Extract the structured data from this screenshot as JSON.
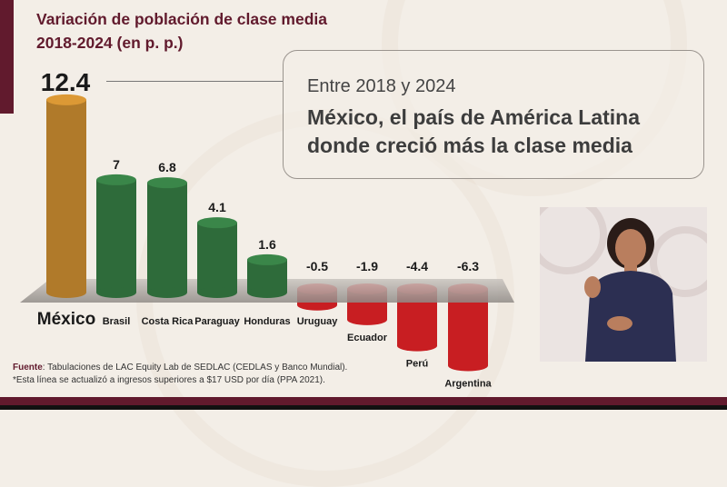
{
  "title_line1": "Variación de población de clase media",
  "title_line2": "2018-2024 (en p. p.)",
  "callout": {
    "subtitle": "Entre 2018 y 2024",
    "headline_line1": "México, el país de América Latina",
    "headline_line2": "donde creció más la clase media"
  },
  "footer": {
    "source_label": "Fuente",
    "source_text": ": Tabulaciones de LAC Equity Lab de SEDLAC (CEDLAS y Banco Mundial).",
    "note": "*Esta línea se actualizó a ingresos superiores a $17 USD por día (PPA 2021)."
  },
  "colors": {
    "brand": "#611a2d",
    "highlight": "#b07a2a",
    "positive": "#2e6b3a",
    "negative": "#c81e22"
  },
  "chart_data": {
    "type": "bar",
    "title": "Variación de población de clase media 2018-2024 (en p. p.)",
    "categories": [
      "México",
      "Brasil",
      "Costa Rica",
      "Paraguay",
      "Honduras",
      "Uruguay",
      "Ecuador",
      "Perú",
      "Argentina"
    ],
    "values": [
      12.4,
      7,
      6.8,
      4.1,
      1.6,
      -0.5,
      -1.9,
      -4.4,
      -6.3
    ],
    "value_labels": [
      "12.4",
      "7",
      "6.8",
      "4.1",
      "1.6",
      "-0.5",
      "-1.9",
      "-4.4",
      "-6.3"
    ],
    "highlight": "México",
    "grid": false,
    "xlabel": "",
    "ylabel": ""
  }
}
